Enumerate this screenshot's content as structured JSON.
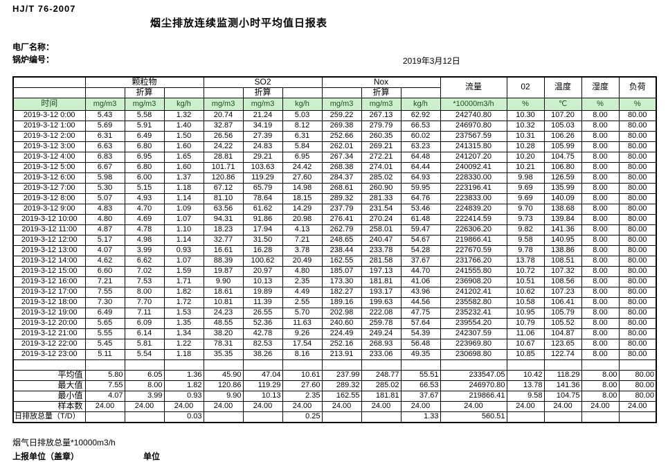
{
  "header": {
    "doc_code": "HJ/T  76-2007",
    "title": "烟尘排放连续监测小时平均值日报表",
    "plant_label": "电厂名称：",
    "boiler_label": "锅炉编号：",
    "date": "2019年3月12日"
  },
  "table": {
    "time_label": "时间",
    "zhesuan": "折算",
    "group_pm": "颗粒物",
    "group_so2": "SO2",
    "group_nox": "Nox",
    "group_flow": "流量",
    "group_o2": "02",
    "group_temp": "温度",
    "group_humidity": "湿度",
    "group_load": "负荷",
    "units": [
      "mg/m3",
      "mg/m3",
      "kg/h",
      "mg/m3",
      "mg/m3",
      "kg/h",
      "mg/m3",
      "mg/m3",
      "kg/h",
      "*10000m3/h",
      "%",
      "℃",
      "%",
      "%"
    ],
    "rows": [
      {
        "time": "2019-3-12 0:00",
        "values": [
          "5.43",
          "5.58",
          "1.32",
          "20.74",
          "21.24",
          "5.03",
          "259.22",
          "267.13",
          "62.92",
          "242740.80",
          "10.30",
          "107.20",
          "8.00",
          "80.00"
        ]
      },
      {
        "time": "2019-3-12 1:00",
        "values": [
          "5.69",
          "5.91",
          "1.40",
          "32.87",
          "34.19",
          "8.12",
          "269.38",
          "279.79",
          "66.53",
          "246970.80",
          "10.32",
          "105.03",
          "8.00",
          "80.00"
        ]
      },
      {
        "time": "2019-3-12 2:00",
        "values": [
          "6.31",
          "6.49",
          "1.50",
          "26.56",
          "27.39",
          "6.31",
          "252.66",
          "260.35",
          "60.02",
          "237567.59",
          "10.31",
          "106.26",
          "8.00",
          "80.00"
        ]
      },
      {
        "time": "2019-3-12 3:00",
        "values": [
          "6.63",
          "6.80",
          "1.60",
          "24.22",
          "24.83",
          "5.84",
          "262.01",
          "269.21",
          "63.23",
          "241315.80",
          "10.28",
          "105.99",
          "8.00",
          "80.00"
        ]
      },
      {
        "time": "2019-3-12 4:00",
        "values": [
          "6.83",
          "6.95",
          "1.65",
          "28.81",
          "29.21",
          "6.95",
          "267.34",
          "272.21",
          "64.48",
          "241207.20",
          "10.20",
          "104.75",
          "8.00",
          "80.00"
        ]
      },
      {
        "time": "2019-3-12 5:00",
        "values": [
          "6.67",
          "6.80",
          "1.60",
          "101.71",
          "103.63",
          "24.42",
          "268.38",
          "274.01",
          "64.44",
          "240092.41",
          "10.21",
          "106.80",
          "8.00",
          "80.00"
        ]
      },
      {
        "time": "2019-3-12 6:00",
        "values": [
          "5.98",
          "6.00",
          "1.37",
          "120.86",
          "119.29",
          "27.60",
          "284.37",
          "285.02",
          "64.93",
          "228330.00",
          "9.98",
          "126.59",
          "8.00",
          "80.00"
        ]
      },
      {
        "time": "2019-3-12 7:00",
        "values": [
          "5.30",
          "5.15",
          "1.18",
          "67.12",
          "65.79",
          "14.98",
          "268.61",
          "260.90",
          "59.95",
          "223196.41",
          "9.69",
          "135.99",
          "8.00",
          "80.00"
        ]
      },
      {
        "time": "2019-3-12 8:00",
        "values": [
          "5.07",
          "4.93",
          "1.14",
          "81.10",
          "78.64",
          "18.15",
          "289.32",
          "281.33",
          "64.76",
          "223833.00",
          "9.69",
          "140.09",
          "8.00",
          "80.00"
        ]
      },
      {
        "time": "2019-3-12 9:00",
        "values": [
          "4.83",
          "4.70",
          "1.09",
          "63.56",
          "61.62",
          "14.29",
          "237.79",
          "231.54",
          "53.46",
          "224839.20",
          "9.70",
          "138.68",
          "8.00",
          "80.00"
        ]
      },
      {
        "time": "2019-3-12 10:00",
        "values": [
          "4.80",
          "4.69",
          "1.07",
          "94.31",
          "91.86",
          "20.98",
          "276.41",
          "270.24",
          "61.48",
          "222414.59",
          "9.73",
          "139.84",
          "8.00",
          "80.00"
        ]
      },
      {
        "time": "2019-3-12 11:00",
        "values": [
          "4.87",
          "4.78",
          "1.10",
          "18.23",
          "17.94",
          "4.13",
          "262.79",
          "258.01",
          "59.47",
          "226306.20",
          "9.82",
          "141.36",
          "8.00",
          "80.00"
        ]
      },
      {
        "time": "2019-3-12 12:00",
        "values": [
          "5.17",
          "4.98",
          "1.14",
          "32.77",
          "31.50",
          "7.21",
          "248.65",
          "240.47",
          "54.67",
          "219866.41",
          "9.58",
          "140.95",
          "8.00",
          "80.00"
        ]
      },
      {
        "time": "2019-3-12 13:00",
        "values": [
          "4.07",
          "3.99",
          "0.93",
          "16.61",
          "16.28",
          "3.78",
          "238.44",
          "233.78",
          "54.28",
          "227670.59",
          "9.78",
          "138.86",
          "8.00",
          "80.00"
        ]
      },
      {
        "time": "2019-3-12 14:00",
        "values": [
          "4.62",
          "6.62",
          "1.07",
          "88.39",
          "100.62",
          "20.49",
          "162.55",
          "281.58",
          "37.67",
          "231766.20",
          "13.78",
          "108.51",
          "8.00",
          "80.00"
        ]
      },
      {
        "time": "2019-3-12 15:00",
        "values": [
          "6.60",
          "7.02",
          "1.59",
          "19.87",
          "20.97",
          "4.80",
          "185.07",
          "197.13",
          "44.70",
          "241555.80",
          "10.72",
          "107.32",
          "8.00",
          "80.00"
        ]
      },
      {
        "time": "2019-3-12 16:00",
        "values": [
          "7.21",
          "7.53",
          "1.71",
          "9.90",
          "10.13",
          "2.35",
          "173.30",
          "181.81",
          "41.06",
          "236908.20",
          "10.51",
          "108.56",
          "8.00",
          "80.00"
        ]
      },
      {
        "time": "2019-3-12 17:00",
        "values": [
          "7.55",
          "8.00",
          "1.82",
          "18.61",
          "19.89",
          "4.49",
          "182.27",
          "193.17",
          "43.96",
          "241202.41",
          "10.62",
          "107.23",
          "8.00",
          "80.00"
        ]
      },
      {
        "time": "2019-3-12 18:00",
        "values": [
          "7.30",
          "7.70",
          "1.72",
          "10.81",
          "11.39",
          "2.55",
          "189.16",
          "199.63",
          "44.56",
          "235582.80",
          "10.58",
          "106.41",
          "8.00",
          "80.00"
        ]
      },
      {
        "time": "2019-3-12 19:00",
        "values": [
          "6.49",
          "7.11",
          "1.53",
          "24.23",
          "26.55",
          "5.70",
          "202.98",
          "222.08",
          "47.75",
          "235232.41",
          "10.95",
          "105.79",
          "8.00",
          "80.00"
        ]
      },
      {
        "time": "2019-3-12 20:00",
        "values": [
          "5.65",
          "6.09",
          "1.35",
          "48.55",
          "52.36",
          "11.63",
          "240.60",
          "259.78",
          "57.64",
          "239554.20",
          "10.79",
          "105.52",
          "8.00",
          "80.00"
        ]
      },
      {
        "time": "2019-3-12 21:00",
        "values": [
          "5.55",
          "6.14",
          "1.34",
          "38.20",
          "42.78",
          "9.26",
          "224.49",
          "249.24",
          "54.39",
          "242307.59",
          "11.06",
          "104.87",
          "8.00",
          "80.00"
        ]
      },
      {
        "time": "2019-3-12 22:00",
        "values": [
          "5.45",
          "5.81",
          "1.22",
          "78.31",
          "82.53",
          "17.54",
          "252.16",
          "268.93",
          "56.48",
          "223969.80",
          "10.67",
          "123.65",
          "8.00",
          "80.00"
        ]
      },
      {
        "time": "2019-3-12 23:00",
        "values": [
          "5.11",
          "5.54",
          "1.18",
          "35.35",
          "38.26",
          "8.16",
          "213.91",
          "233.06",
          "49.35",
          "230698.80",
          "10.85",
          "122.74",
          "8.00",
          "80.00"
        ]
      }
    ],
    "summary": [
      {
        "label": "平均值",
        "align": "right",
        "values": [
          "5.80",
          "6.05",
          "1.36",
          "45.90",
          "47.04",
          "10.61",
          "237.99",
          "248.77",
          "55.51",
          "233547.05",
          "10.42",
          "118.29",
          "8.00",
          "80.00"
        ]
      },
      {
        "label": "最大值",
        "align": "right",
        "values": [
          "7.55",
          "8.00",
          "1.82",
          "120.86",
          "119.29",
          "27.60",
          "289.32",
          "285.02",
          "66.53",
          "246970.80",
          "13.78",
          "141.36",
          "8.00",
          "80.00"
        ]
      },
      {
        "label": "最小值",
        "align": "right",
        "values": [
          "4.07",
          "3.99",
          "0.93",
          "9.90",
          "10.13",
          "2.35",
          "162.55",
          "181.81",
          "37.67",
          "219866.41",
          "9.58",
          "104.75",
          "8.00",
          "80.00"
        ]
      },
      {
        "label": "样本数",
        "align": "center",
        "values": [
          "24.00",
          "24.00",
          "24.00",
          "24.00",
          "24.00",
          "24.00",
          "24.00",
          "24.00",
          "24.00",
          "24.00",
          "24.00",
          "24.00",
          "24.00",
          "24.00"
        ]
      },
      {
        "label": "日排放总量（T/D）",
        "align": "total",
        "values": [
          "",
          "",
          "0.03",
          "",
          "",
          "0.25",
          "",
          "",
          "1.33",
          "560.51",
          "",
          "",
          "",
          ""
        ]
      }
    ]
  },
  "footer": {
    "flue_total": "烟气日排放总量*10000m3/h",
    "report_unit": "上报单位（盖章）",
    "unit": "单位"
  },
  "colors": {
    "header_row_bg": "#ccf0cc",
    "border": "#000000"
  }
}
